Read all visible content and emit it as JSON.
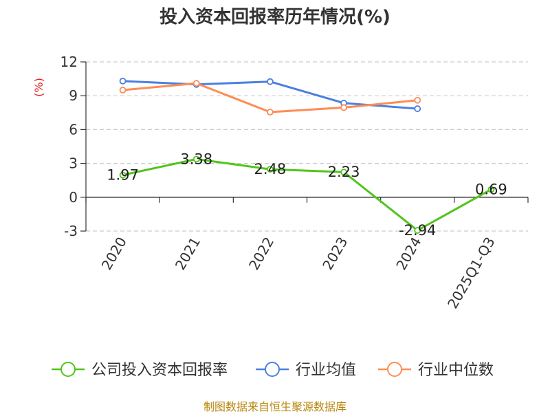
{
  "title": "投入资本回报率历年情况(%)",
  "footer": "制图数据来自恒生聚源数据库",
  "chart_data": {
    "type": "line",
    "title": "投入资本回报率历年情况(%)",
    "ylabel": "(%)",
    "xlabel": "",
    "ylim": [
      -3,
      12
    ],
    "yticks": [
      -3,
      0,
      3,
      6,
      9,
      12
    ],
    "grid": true,
    "legend_position": "bottom",
    "categories": [
      "2020",
      "2021",
      "2022",
      "2023",
      "2024",
      "2025Q1-Q3"
    ],
    "series": [
      {
        "name": "公司投入资本回报率",
        "color": "#52c41a",
        "values": [
          1.97,
          3.38,
          2.48,
          2.23,
          -2.94,
          0.69
        ],
        "data_labels": [
          "1.97",
          "3.38",
          "2.48",
          "2.23",
          "-2.94",
          "0.69"
        ]
      },
      {
        "name": "行业均值",
        "color": "#4a7fe0",
        "values": [
          10.3,
          10.0,
          10.25,
          8.35,
          7.85,
          null
        ]
      },
      {
        "name": "行业中位数",
        "color": "#ff8c55",
        "values": [
          9.5,
          10.1,
          7.55,
          7.95,
          8.6,
          null
        ]
      }
    ]
  }
}
